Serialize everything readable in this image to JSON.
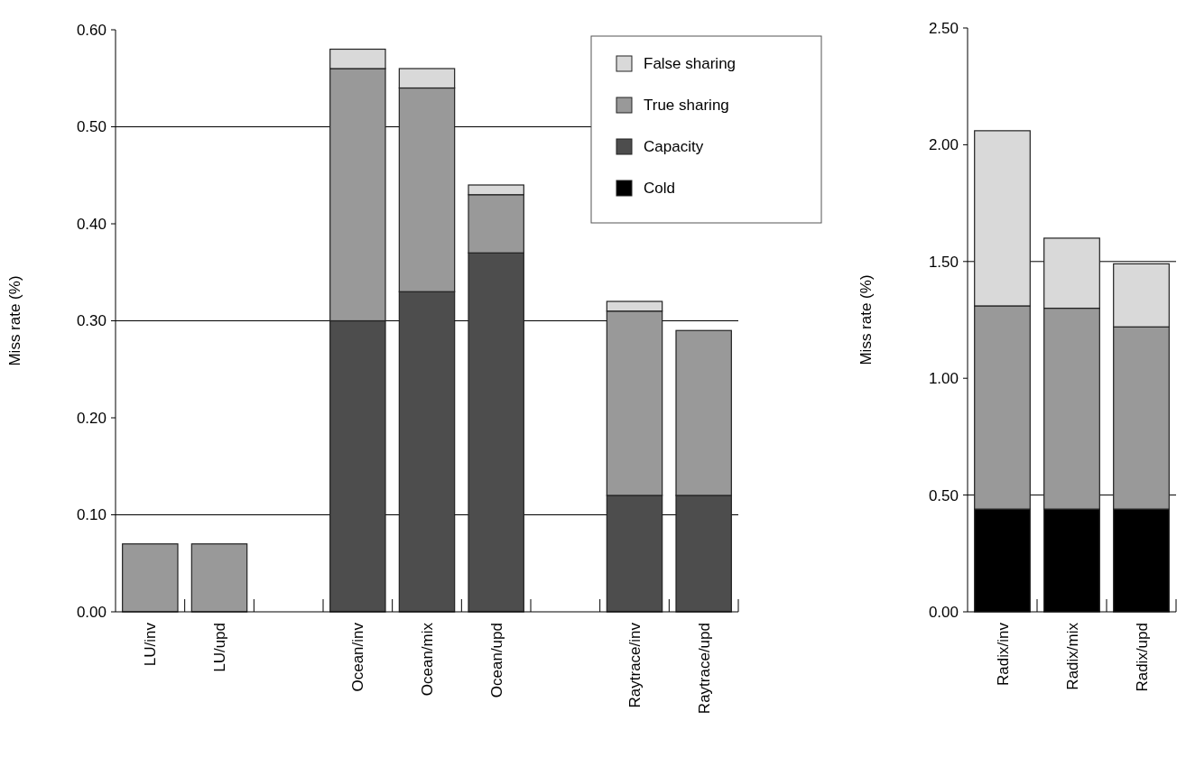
{
  "chart_data": [
    {
      "type": "bar",
      "stacked": true,
      "ylabel": "Miss rate (%)",
      "categories": [
        "LU/inv",
        "LU/upd",
        null,
        "Ocean/inv",
        "Ocean/mix",
        "Ocean/upd",
        null,
        "Raytrace/inv",
        "Raytrace/upd"
      ],
      "ylim": [
        0,
        0.6
      ],
      "yticks": [
        {
          "value": 0,
          "label": "0.00"
        },
        {
          "value": 0.1,
          "label": "0.10"
        },
        {
          "value": 0.2,
          "label": "0.20"
        },
        {
          "value": 0.3,
          "label": "0.30"
        },
        {
          "value": 0.4,
          "label": "0.40"
        },
        {
          "value": 0.5,
          "label": "0.50"
        },
        {
          "value": 0.6,
          "label": "0.60"
        }
      ],
      "ref_lines": [
        {
          "axis": "y",
          "value": 0.1,
          "color": "#000000"
        },
        {
          "axis": "y",
          "value": 0.3,
          "color": "#000000"
        },
        {
          "axis": "y",
          "value": 0.5,
          "color": "#000000"
        }
      ],
      "legend": "top right",
      "series": [
        {
          "name": "Cold",
          "color": "#000000",
          "values": [
            0,
            0,
            null,
            0,
            0,
            0,
            null,
            0,
            0
          ]
        },
        {
          "name": "Capacity",
          "color": "#4d4d4d",
          "values": [
            0,
            0,
            null,
            0.3,
            0.33,
            0.37,
            null,
            0.12,
            0.12
          ]
        },
        {
          "name": "True sharing",
          "color": "#999999",
          "values": [
            0.07,
            0.07,
            null,
            0.26,
            0.21,
            0.06,
            null,
            0.19,
            0.17
          ]
        },
        {
          "name": "False sharing",
          "color": "#d9d9d9",
          "values": [
            0,
            0,
            null,
            0.02,
            0.02,
            0.01,
            null,
            0.01,
            0
          ]
        }
      ]
    },
    {
      "type": "bar",
      "stacked": true,
      "ylabel": "Miss rate (%)",
      "categories": [
        "Radix/inv",
        "Radix/mix",
        "Radix/upd"
      ],
      "ylim": [
        0,
        2.5
      ],
      "yticks": [
        {
          "value": 0,
          "label": "0.00"
        },
        {
          "value": 0.5,
          "label": "0.50"
        },
        {
          "value": 1,
          "label": "1.00"
        },
        {
          "value": 1.5,
          "label": "1.50"
        },
        {
          "value": 2,
          "label": "2.00"
        },
        {
          "value": 2.5,
          "label": "2.50"
        }
      ],
      "ref_lines": [
        {
          "axis": "y",
          "value": 0.5,
          "color": "#000000"
        },
        {
          "axis": "y",
          "value": 1.5,
          "color": "#000000"
        }
      ],
      "series": [
        {
          "color": "#000000",
          "values": [
            0.44,
            0.44,
            0.44
          ]
        },
        {
          "color": "#999999",
          "values": [
            0.87,
            0.86,
            0.78
          ]
        },
        {
          "color": "#d9d9d9",
          "values": [
            0.75,
            0.3,
            0.27
          ]
        }
      ]
    }
  ]
}
